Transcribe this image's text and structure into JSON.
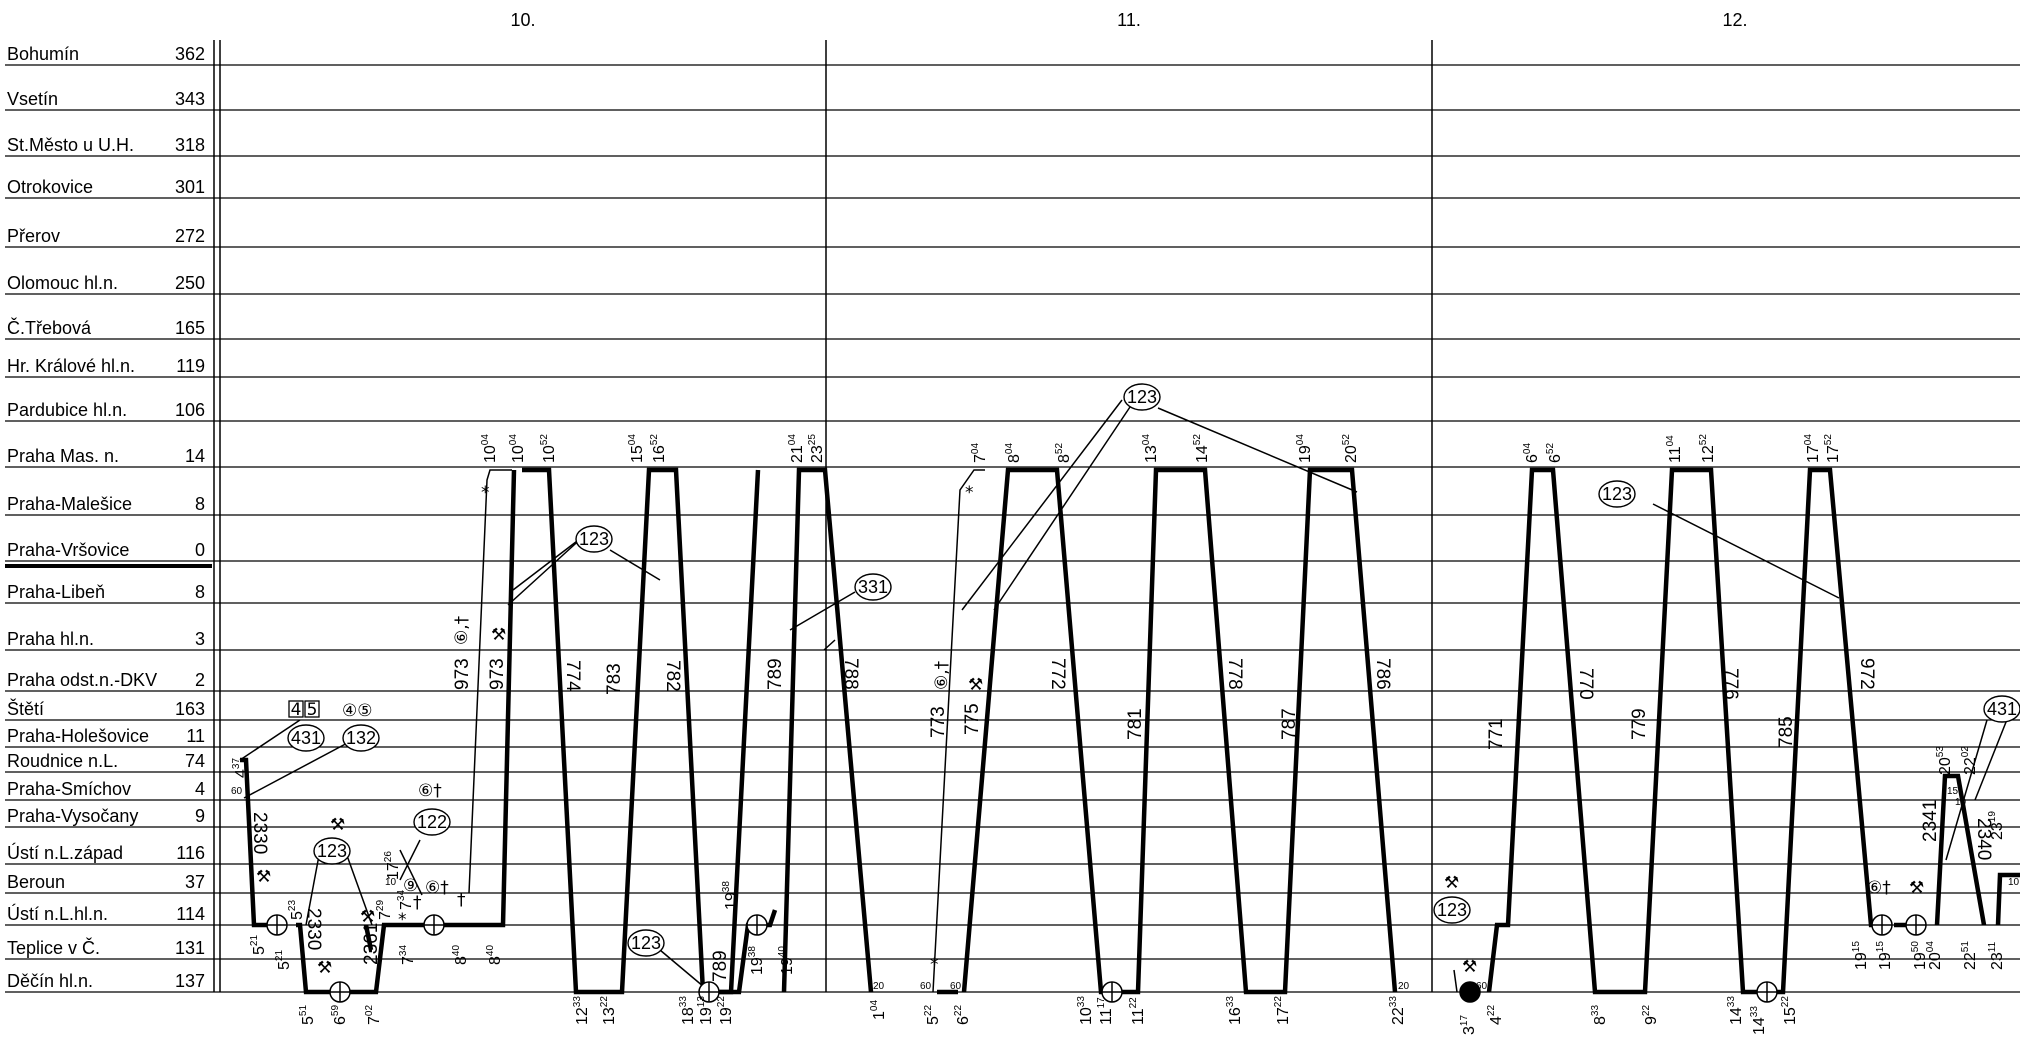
{
  "days": [
    "10.",
    "11.",
    "12."
  ],
  "stations": [
    {
      "name": "Bohumín",
      "km": "362"
    },
    {
      "name": "Vsetín",
      "km": "343"
    },
    {
      "name": "St.Město u U.H.",
      "km": "318"
    },
    {
      "name": "Otrokovice",
      "km": "301"
    },
    {
      "name": "Přerov",
      "km": "272"
    },
    {
      "name": "Olomouc hl.n.",
      "km": "250"
    },
    {
      "name": "Č.Třebová",
      "km": "165"
    },
    {
      "name": "Hr. Králové hl.n.",
      "km": "119"
    },
    {
      "name": "Pardubice hl.n.",
      "km": "106"
    },
    {
      "name": "Praha Mas. n.",
      "km": "14"
    },
    {
      "name": "Praha-Malešice",
      "km": "8"
    },
    {
      "name": "Praha-Vršovice",
      "km": "0"
    },
    {
      "name": "Praha-Libeň",
      "km": "8"
    },
    {
      "name": "Praha hl.n.",
      "km": "3"
    },
    {
      "name": "Praha odst.n.-DKV",
      "km": "2"
    },
    {
      "name": "Štětí",
      "km": "163"
    },
    {
      "name": "Praha-Holešovice",
      "km": "11"
    },
    {
      "name": "Roudnice n.L.",
      "km": "74"
    },
    {
      "name": "Praha-Smíchov",
      "km": "4"
    },
    {
      "name": "Praha-Vysočany",
      "km": "9"
    },
    {
      "name": "Ústí n.L.západ",
      "km": "116"
    },
    {
      "name": "Beroun",
      "km": "37"
    },
    {
      "name": "Ústí n.L.hl.n.",
      "km": "114"
    },
    {
      "name": "Teplice v Č.",
      "km": "131"
    },
    {
      "name": "Děčín hl.n.",
      "km": "137"
    }
  ],
  "circled_labels": {
    "c123a": "123",
    "c123b": "123",
    "c123c": "123",
    "c123d": "123",
    "c123e": "123",
    "c123f": "123",
    "c331": "331",
    "c431a": "431",
    "c431b": "431",
    "c132": "132",
    "c122": "122"
  },
  "boxed_days": [
    "4",
    "5"
  ],
  "circled_days": "④⑤",
  "day_symbols": {
    "d6a": "⑥†",
    "d6b": "⑥†",
    "d6c": "⑥†",
    "d9": "⑨",
    "d6t1": "⑥,†",
    "d6t2": "⑥,†"
  },
  "train_numbers": {
    "t973a": "973",
    "t973b": "973",
    "t774": "774",
    "t783": "783",
    "t782": "782",
    "t789a": "789",
    "t788": "788",
    "t773": "773",
    "t775": "775",
    "t772": "772",
    "t781": "781",
    "t778": "778",
    "t787": "787",
    "t786": "786",
    "t771": "771",
    "t770": "770",
    "t779": "779",
    "t776": "776",
    "t785": "785",
    "t972": "972",
    "t2330a": "2330",
    "t2330b": "2330",
    "t2361": "2361",
    "t789b": "789",
    "t2341": "2341",
    "t2340": "2340"
  },
  "times": {
    "a": "10",
    "a_s": "04",
    "b": "10",
    "b_s": "04",
    "c": "10",
    "c_s": "52",
    "d": "15",
    "d_s": "04",
    "e": "16",
    "e_s": "52",
    "f": "21",
    "f_s": "04",
    "g": "23",
    "g_s": "25",
    "h": "7",
    "h_s": "04",
    "i": "8",
    "i_s": "04",
    "j": "8",
    "j_s": "52",
    "k": "13",
    "k_s": "04",
    "l": "14",
    "l_s": "52",
    "m": "19",
    "m_s": "04",
    "n": "20",
    "n_s": "52",
    "o": "6",
    "o_s": "04",
    "p": "6",
    "p_s": "52",
    "q": "11",
    "q_s": "04",
    "r": "12",
    "r_s": "52",
    "s": "17",
    "s_s": "04",
    "t": "17",
    "t_s": "52",
    "b1": "5",
    "b1_s": "51",
    "b2": "6",
    "b2_s": "59",
    "b3": "7",
    "b3_s": "02",
    "b4": "12",
    "b4_s": "33",
    "b5": "13",
    "b5_s": "22",
    "b6": "18",
    "b6_s": "33",
    "b7": "19",
    "b7_s": "13",
    "b8": "19",
    "b8_s": "22",
    "b9": "1",
    "b9_s": "04",
    "b10": "5",
    "b10_s": "22",
    "b11": "6",
    "b11_s": "22",
    "b12": "10",
    "b12_s": "33",
    "b13": "11",
    "b13_s": "17",
    "b14": "11",
    "b14_s": "22",
    "b15": "16",
    "b15_s": "33",
    "b16": "17",
    "b16_s": "22",
    "b17": "22",
    "b17_s": "33",
    "b18": "3",
    "b18_s": "17",
    "b19": "4",
    "b19_s": "22",
    "b20": "8",
    "b20_s": "33",
    "b21": "9",
    "b21_s": "22",
    "b22": "14",
    "b22_s": "33",
    "b23": "14",
    "b23_s": "33",
    "b24": "15",
    "b24_s": "22",
    "c1": "5",
    "c1_s": "21",
    "c2": "5",
    "c2_s": "21",
    "c3": "5",
    "c3_s": "23",
    "c4": "4",
    "c4_s": "37",
    "c5": "7",
    "c5_s": "34",
    "c6": "7",
    "c6_s": "34",
    "c7": "7",
    "c7_s": "29",
    "c8": "8",
    "c8_s": "40",
    "c9": "8",
    "c9_s": "40",
    "c10": "17",
    "c10_s": "26",
    "c11": "19",
    "c11_s": "38",
    "c12": "19",
    "c12_s": "38",
    "c13": "19",
    "c13_s": "40",
    "c14": "19",
    "c14_s": "15",
    "c15": "19",
    "c15_s": "15",
    "c16": "19",
    "c16_s": "50",
    "c17": "20",
    "c17_s": "04",
    "c18": "22",
    "c18_s": "51",
    "c19": "23",
    "c19_s": "11",
    "c20": "20",
    "c20_s": "53",
    "c21": "22",
    "c21_s": "02",
    "c22": "23",
    "c22_s": "19",
    "m60a": "60",
    "m60b": "60",
    "m60c": "60",
    "m60d": "60",
    "m20a": "20",
    "m20b": "20",
    "m10a": "10",
    "m10b": "10",
    "m15": "15",
    "m10c": "10"
  }
}
